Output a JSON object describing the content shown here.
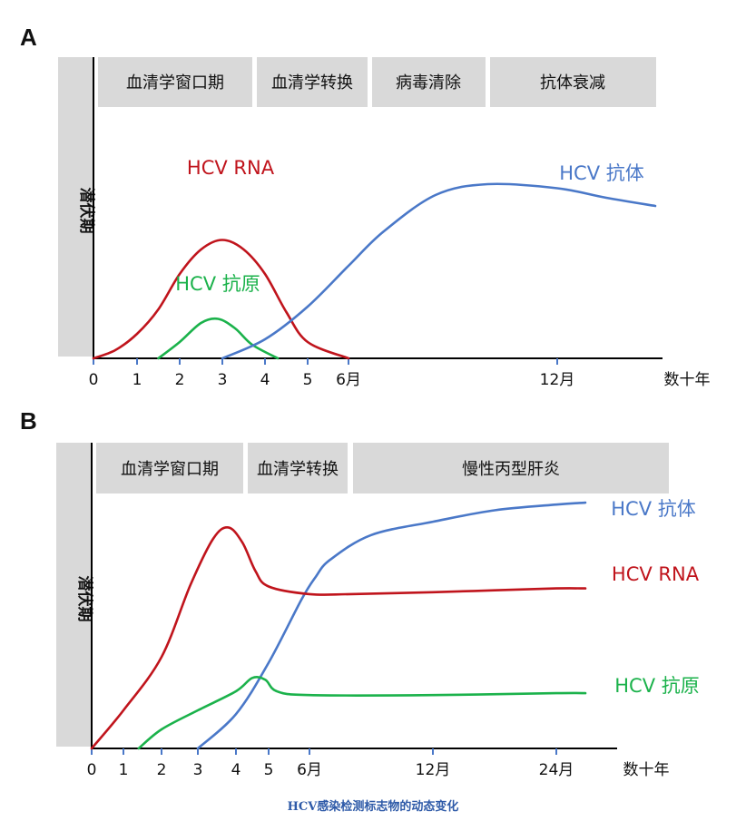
{
  "figure": {
    "caption": "HCV感染检测标志物的动态变化",
    "colors": {
      "rna": "#c0141c",
      "antigen": "#1bb24b",
      "antibody": "#4a78c8",
      "phase_bg": "#d9d9d9"
    }
  },
  "chart_data": [
    {
      "panel": "A",
      "type": "line",
      "latent_label": "潜伏期",
      "phases": [
        "血清学窗口期",
        "血清学转换",
        "病毒清除",
        "抗体衰减"
      ],
      "x_ticks": [
        "0",
        "1",
        "2",
        "3",
        "4",
        "5",
        "6月",
        "12月",
        "数十年"
      ],
      "series": [
        {
          "name": "HCV RNA",
          "color": "#c0141c",
          "points": [
            [
              0,
              0
            ],
            [
              0.5,
              0.06
            ],
            [
              1,
              0.18
            ],
            [
              1.5,
              0.36
            ],
            [
              2,
              0.62
            ],
            [
              2.5,
              0.8
            ],
            [
              3,
              0.87
            ],
            [
              3.5,
              0.8
            ],
            [
              4,
              0.62
            ],
            [
              4.5,
              0.34
            ],
            [
              5,
              0.12
            ],
            [
              6,
              0
            ]
          ]
        },
        {
          "name": "HCV 抗原",
          "color": "#1bb24b",
          "points": [
            [
              1.5,
              0
            ],
            [
              2,
              0.12
            ],
            [
              2.5,
              0.26
            ],
            [
              2.9,
              0.29
            ],
            [
              3.3,
              0.22
            ],
            [
              3.7,
              0.1
            ],
            [
              4.3,
              0
            ]
          ]
        },
        {
          "name": "HCV 抗体",
          "color": "#4a78c8",
          "points": [
            [
              3,
              0
            ],
            [
              4,
              0.14
            ],
            [
              5,
              0.38
            ],
            [
              6,
              0.68
            ],
            [
              7,
              0.93
            ],
            [
              8.5,
              1.2
            ],
            [
              10,
              1.28
            ],
            [
              12,
              1.25
            ],
            [
              14,
              1.18
            ],
            [
              16,
              1.12
            ]
          ]
        }
      ]
    },
    {
      "panel": "B",
      "type": "line",
      "latent_label": "潜伏期",
      "phases": [
        "血清学窗口期",
        "血清学转换",
        "慢性丙型肝炎"
      ],
      "x_ticks": [
        "0",
        "1",
        "2",
        "3",
        "4",
        "5",
        "6月",
        "12月",
        "24月",
        "数十年"
      ],
      "series": [
        {
          "name": "HCV 抗体",
          "color": "#4a78c8",
          "points": [
            [
              3,
              0
            ],
            [
              4,
              0.18
            ],
            [
              5,
              0.45
            ],
            [
              5.8,
              0.78
            ],
            [
              6.3,
              0.9
            ],
            [
              7,
              0.99
            ],
            [
              9,
              1.12
            ],
            [
              12,
              1.19
            ],
            [
              18,
              1.25
            ],
            [
              24,
              1.28
            ],
            [
              28,
              1.29
            ]
          ]
        },
        {
          "name": "HCV RNA",
          "color": "#c0141c",
          "points": [
            [
              0,
              0
            ],
            [
              1,
              0.2
            ],
            [
              2,
              0.48
            ],
            [
              2.8,
              0.86
            ],
            [
              3.4,
              1.1
            ],
            [
              3.8,
              1.16
            ],
            [
              4.2,
              1.08
            ],
            [
              4.6,
              0.93
            ],
            [
              5,
              0.85
            ],
            [
              6,
              0.81
            ],
            [
              8,
              0.81
            ],
            [
              12,
              0.82
            ],
            [
              18,
              0.83
            ],
            [
              24,
              0.84
            ],
            [
              28,
              0.84
            ]
          ]
        },
        {
          "name": "HCV 抗原",
          "color": "#1bb24b",
          "points": [
            [
              1.4,
              0
            ],
            [
              2,
              0.1
            ],
            [
              3,
              0.2
            ],
            [
              4,
              0.3
            ],
            [
              4.5,
              0.37
            ],
            [
              4.9,
              0.36
            ],
            [
              5.2,
              0.3
            ],
            [
              6,
              0.28
            ],
            [
              12,
              0.28
            ],
            [
              24,
              0.29
            ],
            [
              28,
              0.29
            ]
          ]
        }
      ]
    }
  ]
}
